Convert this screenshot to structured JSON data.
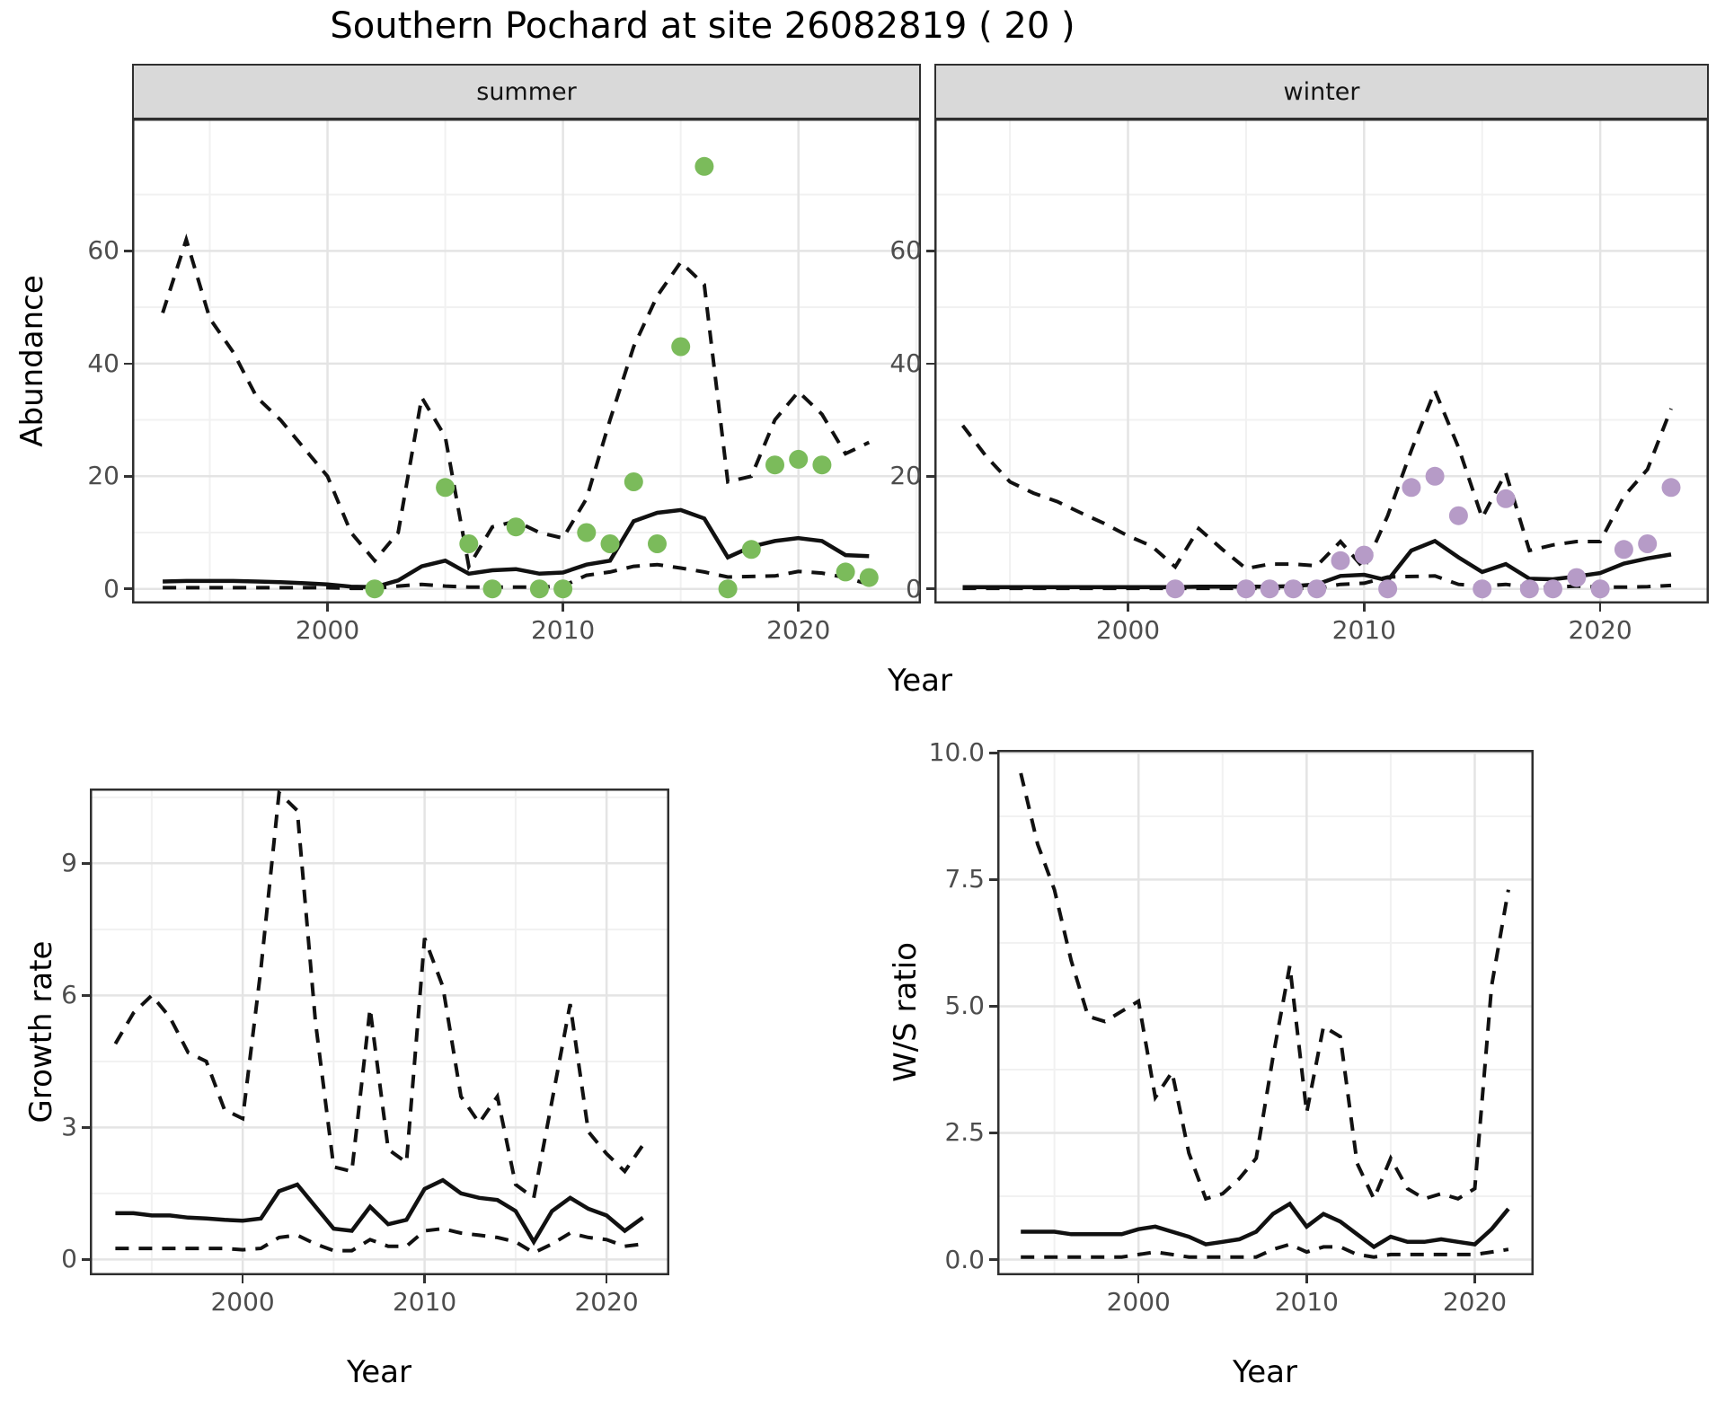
{
  "title": "Southern Pochard at site 26082819 ( 20 )",
  "facets": {
    "summer": "summer",
    "winter": "winter"
  },
  "axes": {
    "abundance_label": "Abundance",
    "year_label": "Year",
    "growth_label": "Growth rate",
    "ws_label": "W/S ratio"
  },
  "style": {
    "summer_point_color": "#7bbb5b",
    "winter_point_color": "#b69bc7",
    "line_color": "#111111",
    "grid_major_color": "#e4e4e4",
    "grid_minor_color": "#f1f1f1",
    "panel_border_color": "#2f2f2f",
    "strip_fill": "#d9d9d9"
  },
  "chart_data": [
    {
      "id": "abundance-summer",
      "type": "line+scatter",
      "facet": "summer",
      "ylabel": "Abundance",
      "xlabel": "Year",
      "xlim": [
        1991.7,
        2025.2
      ],
      "ylim": [
        -2.6,
        83.5
      ],
      "xticks": [
        2000,
        2010,
        2020
      ],
      "yticks": [
        0,
        20,
        40,
        60
      ],
      "years": [
        1993,
        1994,
        1995,
        1996,
        1997,
        1998,
        1999,
        2000,
        2001,
        2002,
        2003,
        2004,
        2005,
        2006,
        2007,
        2008,
        2009,
        2010,
        2011,
        2012,
        2013,
        2014,
        2015,
        2016,
        2017,
        2018,
        2019,
        2020,
        2021,
        2022,
        2023
      ],
      "ci_upper": [
        49,
        62,
        48,
        42,
        34,
        30,
        25,
        20,
        10,
        5,
        10,
        34,
        27,
        4,
        11,
        12,
        10,
        9,
        16,
        30,
        43,
        52,
        58,
        54,
        19,
        20,
        30,
        35,
        31,
        24,
        26
      ],
      "mean": [
        1.3,
        1.4,
        1.4,
        1.4,
        1.3,
        1.2,
        1.0,
        0.8,
        0.4,
        0.3,
        1.5,
        4.0,
        5.0,
        2.7,
        3.3,
        3.5,
        2.7,
        2.9,
        4.3,
        5.0,
        12.0,
        13.5,
        14.0,
        12.5,
        5.6,
        7.5,
        8.5,
        9.0,
        8.5,
        6.0,
        5.8
      ],
      "ci_lower": [
        0.2,
        0.2,
        0.2,
        0.2,
        0.2,
        0.2,
        0.2,
        0.2,
        0.1,
        0.1,
        0.5,
        0.8,
        0.5,
        0.3,
        0.3,
        0.3,
        0.3,
        0.5,
        2.4,
        3.0,
        4.0,
        4.3,
        3.7,
        3.0,
        2.1,
        2.2,
        2.3,
        3.1,
        2.8,
        2.0,
        0.8
      ],
      "points": [
        [
          2002,
          0
        ],
        [
          2005,
          18
        ],
        [
          2006,
          8
        ],
        [
          2007,
          0
        ],
        [
          2008,
          11
        ],
        [
          2009,
          0
        ],
        [
          2010,
          0
        ],
        [
          2011,
          10
        ],
        [
          2012,
          8
        ],
        [
          2013,
          19
        ],
        [
          2014,
          8
        ],
        [
          2015,
          43
        ],
        [
          2016,
          75
        ],
        [
          2017,
          0
        ],
        [
          2018,
          7
        ],
        [
          2019,
          22
        ],
        [
          2020,
          23
        ],
        [
          2021,
          22
        ],
        [
          2022,
          3
        ],
        [
          2023,
          2
        ]
      ],
      "point_color": "#7bbb5b"
    },
    {
      "id": "abundance-winter",
      "type": "line+scatter",
      "facet": "winter",
      "ylabel": "Abundance",
      "xlabel": "Year",
      "xlim": [
        1991.8,
        2024.6
      ],
      "ylim": [
        -2.6,
        83.5
      ],
      "xticks": [
        2000,
        2010,
        2020
      ],
      "yticks": [
        0,
        20,
        40,
        60
      ],
      "years": [
        1993,
        1994,
        1995,
        1996,
        1997,
        1998,
        1999,
        2000,
        2001,
        2002,
        2003,
        2004,
        2005,
        2006,
        2007,
        2008,
        2009,
        2010,
        2011,
        2012,
        2013,
        2014,
        2015,
        2016,
        2017,
        2018,
        2019,
        2020,
        2021,
        2022,
        2023
      ],
      "ci_upper": [
        29,
        23.5,
        19,
        17,
        15.5,
        13.5,
        11.6,
        9.4,
        7.6,
        3.9,
        10.7,
        7,
        3.6,
        4.4,
        4.4,
        4.1,
        8.4,
        3.6,
        13,
        24.6,
        35.2,
        25.1,
        12.6,
        20.6,
        6.8,
        7.8,
        8.4,
        8.4,
        16.4,
        21.2,
        32
      ],
      "mean": [
        0.3,
        0.3,
        0.3,
        0.3,
        0.3,
        0.3,
        0.3,
        0.3,
        0.3,
        0.3,
        0.4,
        0.4,
        0.4,
        0.4,
        0.5,
        0.8,
        2.3,
        2.5,
        1.5,
        6.8,
        8.5,
        5.6,
        3.0,
        4.4,
        1.8,
        1.7,
        2.2,
        2.8,
        4.5,
        5.4,
        6.1
      ],
      "ci_lower": [
        0.1,
        0.1,
        0.1,
        0.1,
        0.1,
        0.1,
        0.1,
        0.1,
        0.1,
        0.1,
        0.1,
        0.1,
        0.1,
        0.1,
        0.1,
        0.1,
        0.8,
        1.0,
        2.1,
        2.2,
        2.3,
        0.8,
        0.5,
        0.8,
        0.3,
        0.3,
        0.5,
        0.3,
        0.3,
        0.4,
        0.6
      ],
      "points": [
        [
          2002,
          0
        ],
        [
          2005,
          0
        ],
        [
          2006,
          0
        ],
        [
          2007,
          0
        ],
        [
          2008,
          0
        ],
        [
          2009,
          5
        ],
        [
          2010,
          6
        ],
        [
          2011,
          0
        ],
        [
          2012,
          18
        ],
        [
          2013,
          20
        ],
        [
          2014,
          13
        ],
        [
          2015,
          0
        ],
        [
          2016,
          16
        ],
        [
          2017,
          0
        ],
        [
          2018,
          0
        ],
        [
          2019,
          2
        ],
        [
          2020,
          0
        ],
        [
          2021,
          7
        ],
        [
          2022,
          8
        ],
        [
          2023,
          18
        ]
      ],
      "point_color": "#b69bc7"
    },
    {
      "id": "growth-rate",
      "type": "line",
      "ylabel": "Growth rate",
      "xlabel": "Year",
      "xlim": [
        1991.6,
        2023.45
      ],
      "ylim": [
        -0.36,
        10.7
      ],
      "xticks": [
        2000,
        2010,
        2020
      ],
      "yticks": [
        0,
        3,
        6,
        9
      ],
      "years": [
        1993,
        1994,
        1995,
        1996,
        1997,
        1998,
        1999,
        2000,
        2001,
        2002,
        2003,
        2004,
        2005,
        2006,
        2007,
        2008,
        2009,
        2010,
        2011,
        2012,
        2013,
        2014,
        2015,
        2016,
        2017,
        2018,
        2019,
        2020,
        2021,
        2022
      ],
      "ci_upper": [
        4.9,
        5.6,
        6.0,
        5.5,
        4.7,
        4.5,
        3.4,
        3.2,
        6.6,
        10.6,
        10.2,
        5.4,
        2.1,
        2.0,
        5.7,
        2.5,
        2.2,
        7.3,
        6.2,
        3.7,
        3.1,
        3.7,
        1.7,
        1.4,
        3.6,
        5.8,
        2.9,
        2.4,
        2.0,
        2.6
      ],
      "mean": [
        1.05,
        1.05,
        1.0,
        1.0,
        0.95,
        0.93,
        0.9,
        0.88,
        0.93,
        1.55,
        1.7,
        1.2,
        0.7,
        0.65,
        1.2,
        0.8,
        0.9,
        1.6,
        1.8,
        1.5,
        1.4,
        1.35,
        1.1,
        0.4,
        1.1,
        1.4,
        1.15,
        1.0,
        0.65,
        0.95
      ],
      "ci_lower": [
        0.25,
        0.25,
        0.25,
        0.25,
        0.25,
        0.25,
        0.25,
        0.22,
        0.25,
        0.5,
        0.55,
        0.35,
        0.2,
        0.2,
        0.45,
        0.3,
        0.3,
        0.65,
        0.7,
        0.6,
        0.55,
        0.5,
        0.4,
        0.15,
        0.35,
        0.6,
        0.5,
        0.45,
        0.3,
        0.35
      ],
      "points": [],
      "point_color": "none"
    },
    {
      "id": "ws-ratio",
      "type": "line",
      "ylabel": "W/S ratio",
      "xlabel": "Year",
      "xlim": [
        1991.6,
        2023.5
      ],
      "ylim": [
        -0.31,
        10.06
      ],
      "xticks": [
        2000,
        2010,
        2020
      ],
      "yticks": [
        0,
        2.5,
        5,
        7.5,
        10
      ],
      "ytick_labels": [
        "0.0",
        "2.5",
        "5.0",
        "7.5",
        "10.0"
      ],
      "years": [
        1993,
        1994,
        1995,
        1996,
        1997,
        1998,
        1999,
        2000,
        2001,
        2002,
        2003,
        2004,
        2005,
        2006,
        2007,
        2008,
        2009,
        2010,
        2011,
        2012,
        2013,
        2014,
        2015,
        2016,
        2017,
        2018,
        2019,
        2020,
        2021,
        2022
      ],
      "ci_upper": [
        9.6,
        8.2,
        7.3,
        5.9,
        4.8,
        4.7,
        4.9,
        5.1,
        3.2,
        3.7,
        2.1,
        1.2,
        1.3,
        1.6,
        2.0,
        4.0,
        5.8,
        2.9,
        4.6,
        4.4,
        1.9,
        1.2,
        2.0,
        1.4,
        1.2,
        1.3,
        1.2,
        1.4,
        5.4,
        7.3
      ],
      "mean": [
        0.55,
        0.55,
        0.55,
        0.5,
        0.5,
        0.5,
        0.5,
        0.6,
        0.65,
        0.55,
        0.45,
        0.3,
        0.35,
        0.4,
        0.55,
        0.9,
        1.1,
        0.65,
        0.9,
        0.75,
        0.5,
        0.25,
        0.45,
        0.35,
        0.35,
        0.4,
        0.35,
        0.3,
        0.6,
        1.0
      ],
      "ci_lower": [
        0.05,
        0.05,
        0.05,
        0.05,
        0.05,
        0.05,
        0.05,
        0.1,
        0.15,
        0.1,
        0.05,
        0.05,
        0.05,
        0.05,
        0.05,
        0.2,
        0.3,
        0.15,
        0.25,
        0.25,
        0.1,
        0.05,
        0.1,
        0.1,
        0.1,
        0.1,
        0.1,
        0.1,
        0.15,
        0.2
      ]
    }
  ]
}
